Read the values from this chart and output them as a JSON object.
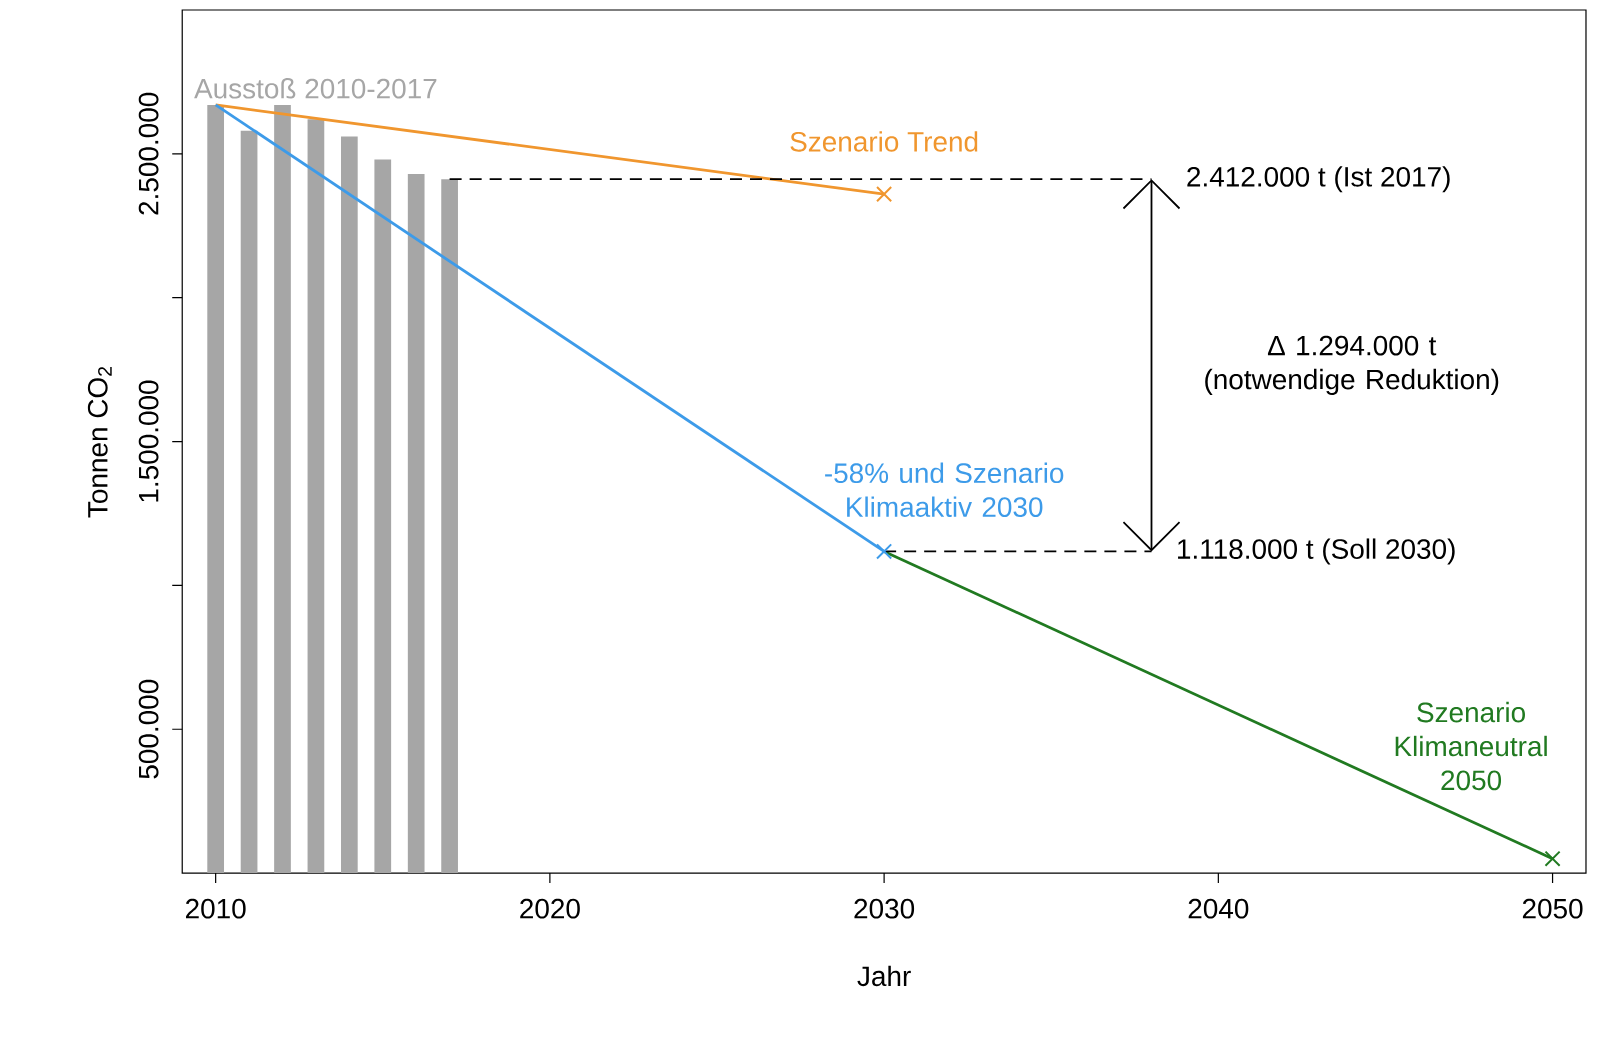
{
  "chart_data": {
    "type": "line",
    "xlabel": "Jahr",
    "ylabel": "Tonnen CO$_{2}$",
    "xlim": [
      2009,
      2051
    ],
    "ylim": [
      0,
      3000000
    ],
    "xticks": [
      2010,
      2020,
      2030,
      2040,
      2050
    ],
    "yticks": [
      {
        "value": 500000,
        "label": "500.000"
      },
      {
        "value": 1000000,
        "label": null
      },
      {
        "value": 1500000,
        "label": "1.500.000"
      },
      {
        "value": 2000000,
        "label": null
      },
      {
        "value": 2500000,
        "label": "2.500.000"
      }
    ],
    "series": [
      {
        "type": "bar",
        "name": "Ausstoß 2010-2017",
        "color": "#a6a6a6",
        "x": [
          2010,
          2011,
          2012,
          2013,
          2014,
          2015,
          2016,
          2017
        ],
        "values": [
          2670000,
          2580000,
          2670000,
          2620000,
          2560000,
          2480000,
          2430000,
          2412000
        ]
      },
      {
        "name": "Szenario Trend",
        "color": "#f0962e",
        "x": [
          2010,
          2030
        ],
        "values": [
          2670000,
          2360000
        ],
        "marker": "cross"
      },
      {
        "name": "-58% und Szenario Klimaaktiv 2030",
        "color": "#3d9be9",
        "x": [
          2010,
          2030
        ],
        "values": [
          2670000,
          1118000
        ],
        "marker": "cross"
      },
      {
        "name": "Szenario Klimaneutral 2050",
        "color": "#217a21",
        "x": [
          2030,
          2050
        ],
        "values": [
          1118000,
          50000
        ],
        "marker": "cross"
      },
      {
        "type": "line",
        "color": "#000000",
        "x": [
          2017,
          2038
        ],
        "values": [
          2412000,
          2412000
        ],
        "line_style": "dashed"
      },
      {
        "type": "line",
        "color": "#000000",
        "x": [
          2030,
          2038
        ],
        "values": [
          1118000,
          1118000
        ],
        "line_style": "dashed"
      }
    ],
    "annotations": [
      {
        "text": "2.412.000 t (Ist 2017)",
        "x": 2038,
        "y": 2412000
      },
      {
        "text": "1.118.000 t (Soll 2030)",
        "x": 2038,
        "y": 1118000
      },
      "Δ 1.294.000 t (notwendige Reduktion)"
    ]
  }
}
